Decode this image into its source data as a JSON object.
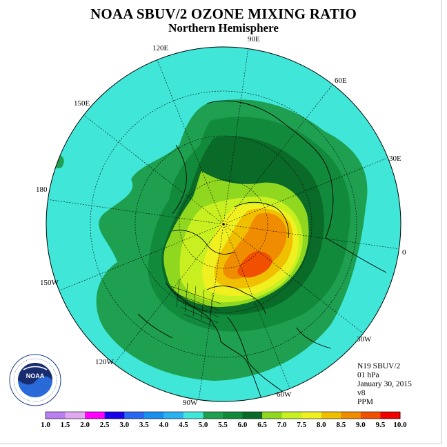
{
  "title": "NOAA SBUV/2 OZONE MIXING RATIO",
  "subtitle": "Northern Hemisphere",
  "info": {
    "satellite": "N19 SBUV/2",
    "level": "01 hPa",
    "date": "January 30, 2015",
    "version": "v8",
    "units": "PPM"
  },
  "longitude_labels": {
    "lon_90e": "90E",
    "lon_60e": "60E",
    "lon_30e": "30E",
    "lon_0": "0",
    "lon_30w": "30W",
    "lon_60w": "60W",
    "lon_90w": "90W",
    "lon_120w": "120W",
    "lon_150w": "150W",
    "lon_180": "180",
    "lon_150e": "150E",
    "lon_120e": "120E"
  },
  "logo_text": "NOAA",
  "colorbar": {
    "ticks": [
      "1.0",
      "1.5",
      "2.0",
      "2.5",
      "3.0",
      "3.5",
      "4.0",
      "4.5",
      "5.0",
      "5.5",
      "6.0",
      "6.5",
      "7.0",
      "7.5",
      "8.0",
      "8.5",
      "9.0",
      "9.5",
      "10.0"
    ],
    "colors": [
      "#b77ff0",
      "#e0a8f0",
      "#ff00ff",
      "#1800e8",
      "#2a66f0",
      "#1890f0",
      "#2bb0f0",
      "#40e6d8",
      "#1ea050",
      "#128a3c",
      "#0a6a28",
      "#90d820",
      "#c8f020",
      "#f0f020",
      "#f0c000",
      "#f08c00",
      "#f05000",
      "#f00000",
      "#8a5a3c"
    ]
  }
}
